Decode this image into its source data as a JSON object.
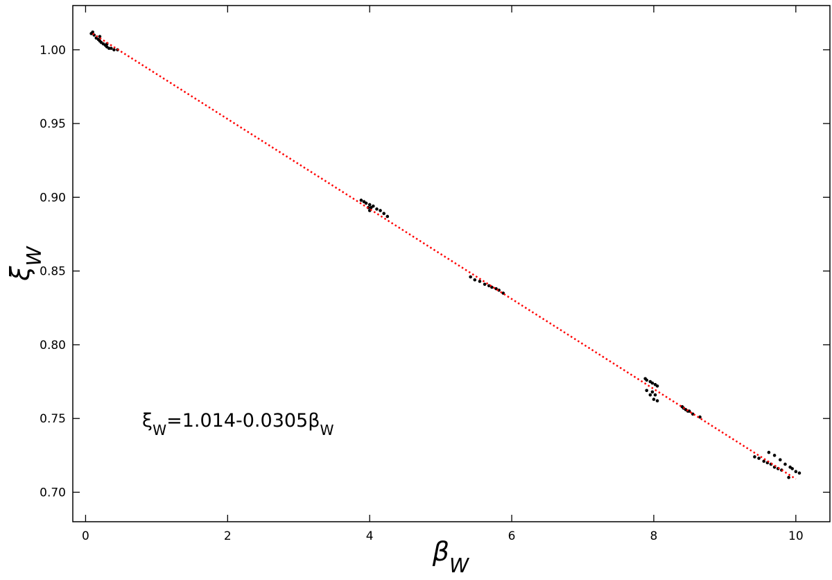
{
  "chart_data": {
    "type": "scatter",
    "xlabel": [
      {
        "text": "β"
      },
      {
        "text": "W",
        "sub": true
      }
    ],
    "ylabel": [
      {
        "text": "ξ"
      },
      {
        "text": "W",
        "sub": true
      }
    ],
    "annotation": [
      {
        "text": "ξ"
      },
      {
        "text": "W",
        "sub": true
      },
      {
        "text": "=1.014-0.0305"
      },
      {
        "text": "β"
      },
      {
        "text": "W",
        "sub": true
      }
    ],
    "xlim": [
      -0.18,
      10.48
    ],
    "ylim": [
      0.68,
      1.03
    ],
    "xticks": [
      0,
      2,
      4,
      6,
      8,
      10
    ],
    "yticks": [
      {
        "value": 0.7,
        "label": "0.70"
      },
      {
        "value": 0.75,
        "label": "0.75"
      },
      {
        "value": 0.8,
        "label": "0.80"
      },
      {
        "value": 0.85,
        "label": "0.85"
      },
      {
        "value": 0.9,
        "label": "0.90"
      },
      {
        "value": 0.95,
        "label": "0.95"
      },
      {
        "value": 1.0,
        "label": "1.00"
      }
    ],
    "series": [
      {
        "color": "#000000",
        "marker": "dot",
        "x": [
          0.08,
          0.1,
          0.12,
          0.15,
          0.18,
          0.2,
          0.22,
          0.25,
          0.28,
          0.3,
          0.33,
          0.36,
          0.4,
          0.45,
          0.2,
          0.3,
          3.88,
          3.92,
          3.95,
          4.0,
          4.02,
          4.05,
          4.1,
          4.15,
          4.2,
          4.25,
          4.0,
          3.98,
          5.42,
          5.48,
          5.55,
          5.62,
          5.68,
          5.72,
          5.78,
          5.82,
          5.88,
          7.88,
          7.9,
          7.95,
          7.98,
          8.02,
          8.05,
          7.9,
          7.95,
          8.0,
          8.05,
          7.98,
          8.02,
          8.4,
          8.42,
          8.45,
          8.48,
          8.5,
          8.55,
          8.65,
          9.42,
          9.48,
          9.55,
          9.6,
          9.65,
          9.7,
          9.75,
          9.8,
          9.62,
          9.7,
          9.78,
          9.85,
          9.92,
          10.0,
          10.05,
          9.95,
          9.9
        ],
        "values": [
          1.011,
          1.012,
          1.01,
          1.008,
          1.007,
          1.006,
          1.005,
          1.004,
          1.003,
          1.002,
          1.001,
          1.001,
          1.0,
          1.0,
          1.009,
          1.004,
          0.898,
          0.897,
          0.896,
          0.895,
          0.893,
          0.894,
          0.892,
          0.891,
          0.889,
          0.887,
          0.891,
          0.893,
          0.846,
          0.844,
          0.843,
          0.841,
          0.84,
          0.839,
          0.838,
          0.837,
          0.835,
          0.777,
          0.776,
          0.775,
          0.774,
          0.773,
          0.772,
          0.769,
          0.766,
          0.763,
          0.762,
          0.768,
          0.766,
          0.758,
          0.757,
          0.756,
          0.755,
          0.755,
          0.753,
          0.751,
          0.724,
          0.723,
          0.721,
          0.72,
          0.719,
          0.717,
          0.716,
          0.715,
          0.727,
          0.725,
          0.722,
          0.719,
          0.717,
          0.714,
          0.713,
          0.716,
          0.71
        ]
      },
      {
        "color": "#ff0000",
        "line": "dotted",
        "x": [
          0.1,
          10
        ],
        "values": [
          1.011,
          0.709
        ]
      }
    ]
  }
}
